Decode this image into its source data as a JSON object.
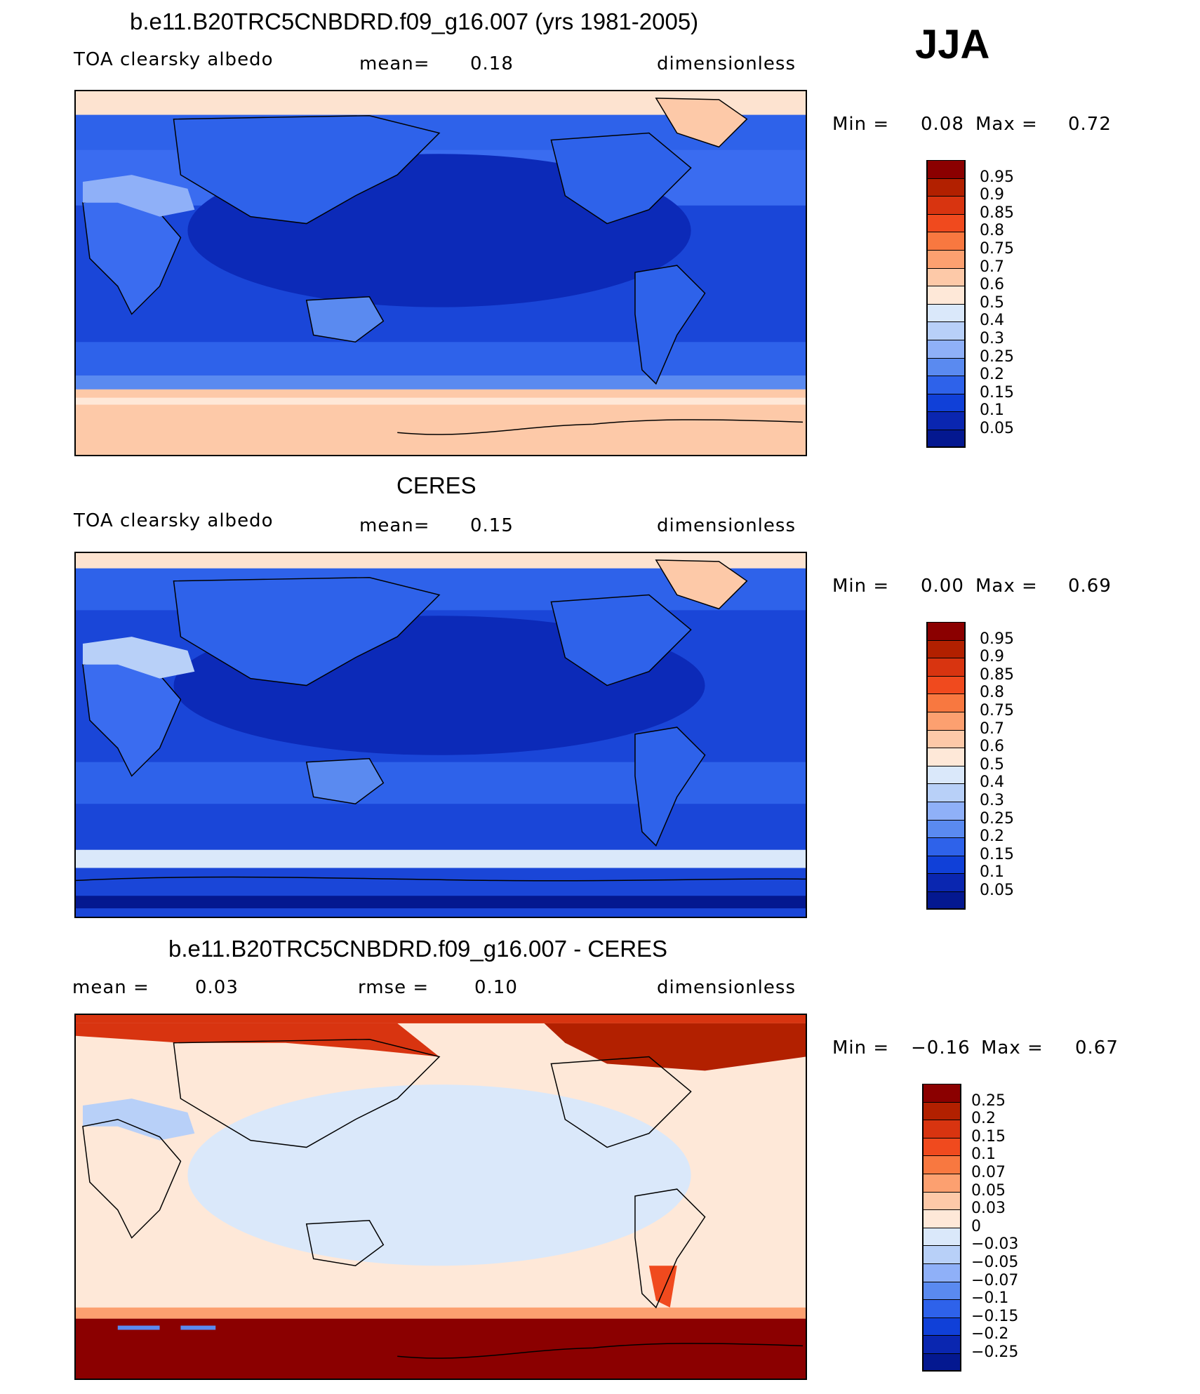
{
  "season": "JJA",
  "panels": [
    {
      "id": "model",
      "title": "b.e11.B20TRC5CNBDRD.f09_g16.007 (yrs 1981-2005)",
      "left": "TOA clearsky albedo",
      "center_label": "mean=",
      "center_value": "0.18",
      "right": "dimensionless",
      "min_label": "Min =",
      "min_value": "0.08",
      "max_label": "Max =",
      "max_value": "0.72"
    },
    {
      "id": "obs",
      "title": "CERES",
      "left": "TOA clearsky albedo",
      "center_label": "mean=",
      "center_value": "0.15",
      "right": "dimensionless",
      "min_label": "Min =",
      "min_value": "0.00",
      "max_label": "Max =",
      "max_value": "0.69"
    },
    {
      "id": "diff",
      "title": "b.e11.B20TRC5CNBDRD.f09_g16.007 - CERES",
      "left_label": "mean =",
      "left_value": "0.03",
      "center_label": "rmse =",
      "center_value": "0.10",
      "right": "dimensionless",
      "min_label": "Min =",
      "min_value": "−0.16",
      "max_label": "Max =",
      "max_value": "0.67"
    }
  ],
  "colorbars": {
    "albedo": {
      "labels": [
        "0.95",
        "0.9",
        "0.85",
        "0.8",
        "0.75",
        "0.7",
        "0.6",
        "0.5",
        "0.4",
        "0.3",
        "0.25",
        "0.2",
        "0.15",
        "0.1",
        "0.05"
      ],
      "colors": [
        "#8b0000",
        "#b22000",
        "#d83410",
        "#f04a1e",
        "#f87840",
        "#fca070",
        "#fdc9a8",
        "#fee8d8",
        "#dae8fa",
        "#b8d0f8",
        "#8fb0f8",
        "#5a8af0",
        "#2e62ea",
        "#1040d8",
        "#0a26b0",
        "#041890"
      ]
    },
    "diff": {
      "labels": [
        "0.25",
        "0.2",
        "0.15",
        "0.1",
        "0.07",
        "0.05",
        "0.03",
        "0",
        "−0.03",
        "−0.05",
        "−0.07",
        "−0.1",
        "−0.15",
        "−0.2",
        "−0.25"
      ],
      "colors": [
        "#8b0000",
        "#b22000",
        "#d83410",
        "#f04a1e",
        "#f87840",
        "#fca070",
        "#fdc9a8",
        "#fee8d8",
        "#dae8fa",
        "#b8d0f8",
        "#8fb0f8",
        "#5a8af0",
        "#2e62ea",
        "#1040d8",
        "#0a26b0",
        "#041890"
      ]
    }
  }
}
